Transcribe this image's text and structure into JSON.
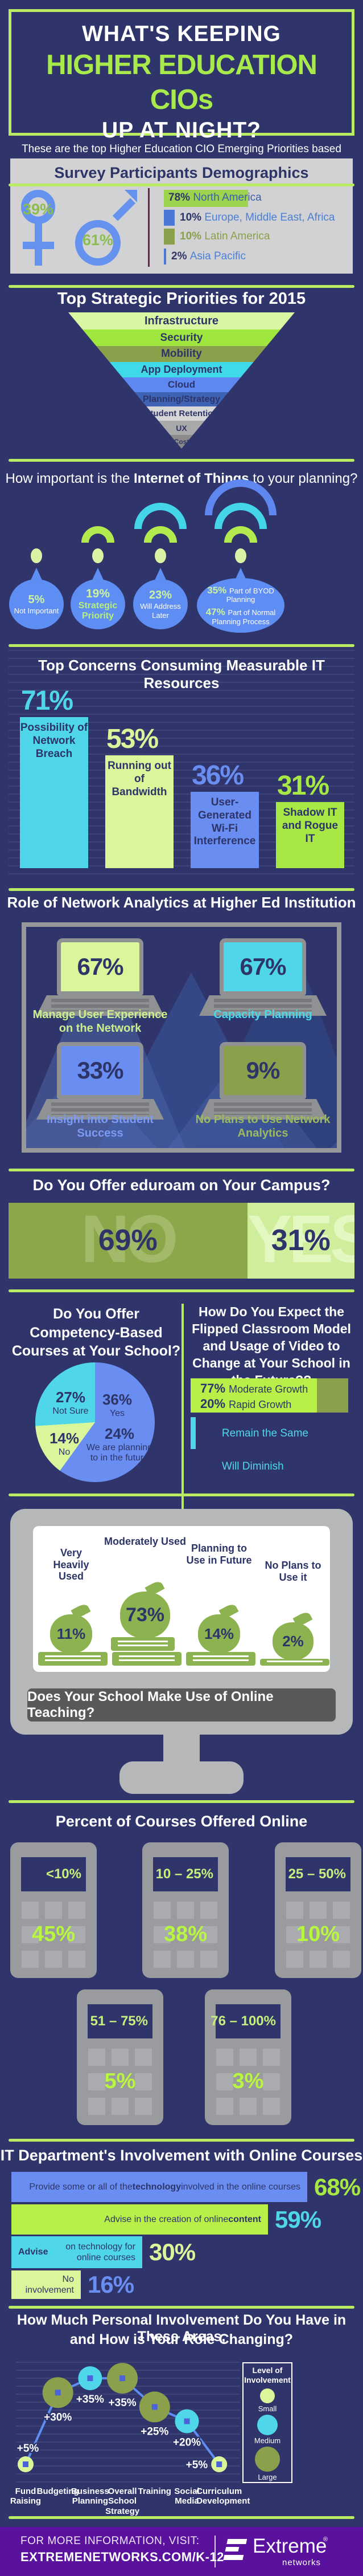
{
  "accent_colors": {
    "background": "#2f356b",
    "divider_green": "#b9ec63",
    "headline_green": "#a8ea4b",
    "navy": "#2d3468",
    "cyan": "#4fd7e9",
    "light_green": "#d9f69b",
    "bright_green": "#a7e844",
    "blue": "#6a8df1",
    "olive": "#8ba04a",
    "footer_purple": "#5a119e"
  },
  "header": {
    "line1": "WHAT'S KEEPING",
    "line2": "HIGHER EDUCATION CIOs",
    "line3": "UP AT NIGHT?",
    "subtitle": "These are the top Higher Education CIO Emerging Priorities based on a worldwide survey of higher education CIOs and directors of technology."
  },
  "demographics": {
    "title": "Survey Participants Demographics",
    "female_pct": "39%",
    "male_pct": "61%"
  },
  "iot": {
    "title_pre": "How important is the ",
    "title_bold": "Internet of Things",
    "title_post": " to your planning?",
    "items": [
      {
        "pct": "5%",
        "label": "Not Important",
        "arcs": 0
      },
      {
        "pct": "19%",
        "label": "Strategic Priority",
        "arcs": 1,
        "emph": true
      },
      {
        "pct": "23%",
        "label": "Will Address Later",
        "arcs": 2
      },
      {
        "pct": "35%",
        "label": "Part of BYOD Planning",
        "pct2": "47%",
        "label2": "Part of Normal Planning Process",
        "arcs": 3,
        "wide": true
      }
    ]
  },
  "it_involvement_bars": [
    {
      "value": 68,
      "pct": "68%",
      "color": "#6a8df1",
      "pct_color": "#a7e844",
      "text_pre": "Provide some or all of the ",
      "text_bold": "technology",
      "text_post": " involved in the online courses"
    },
    {
      "value": 59,
      "pct": "59%",
      "color": "#b9ef49",
      "pct_color": "#4fd7e9",
      "text_pre": "Advise in the creation of online ",
      "text_bold": "content",
      "text_post": ""
    },
    {
      "value": 30,
      "pct": "30%",
      "color": "#4fd7e9",
      "pct_color": "#d9f69b",
      "text_pre": "",
      "text_bold": "Advise",
      "text_post": " on technology for online courses"
    },
    {
      "value": 16,
      "pct": "16%",
      "color": "#d9f69b",
      "pct_color": "#6a8df1",
      "text_pre": "No involvement",
      "text_bold": "",
      "text_post": ""
    }
  ],
  "footer": {
    "line1": "FOR MORE INFORMATION, VISIT:",
    "line2": "EXTREMENETWORKS.COM/K-12",
    "brand": "Extreme",
    "brand_reg": "®",
    "brand_sub": "networks"
  },
  "chart_data": [
    {
      "id": "demographics_gender",
      "type": "pie",
      "categories": [
        "Male",
        "Female"
      ],
      "values": [
        61,
        39
      ],
      "colors": [
        "#6592ee",
        "#6592ee"
      ],
      "value_color": "#8bbd4f"
    },
    {
      "id": "demographics_regions",
      "type": "bar",
      "categories": [
        "North America",
        "Europe, Middle East, Africa",
        "Latin America",
        "Asia Pacific"
      ],
      "values": [
        78,
        10,
        10,
        2
      ],
      "colors": [
        "#9ed34d",
        "#4b77d6",
        "#8ba04a",
        "#4b77d6"
      ],
      "pct_colors": [
        "#2d3468",
        "#2d3468",
        "#8ba04a",
        "#2d3468"
      ],
      "label_colors": [
        "#3a5fae",
        "#4a7fd6",
        "#8ba04a",
        "#4a7fd6"
      ]
    },
    {
      "id": "strategic_priorities",
      "type": "funnel",
      "title": "Top Strategic Priorities for 2015",
      "levels": [
        {
          "label": "Infrastructure",
          "color": "#d9f7a3"
        },
        {
          "label": "Security",
          "color": "#9fe73f"
        },
        {
          "label": "Mobility",
          "color": "#8ba04a"
        },
        {
          "label": "App Deployment",
          "color": "#3fd9e9"
        },
        {
          "label": "Cloud",
          "color": "#5d87f1"
        },
        {
          "label": "Planning/Strategy",
          "color": "#3e63b5"
        },
        {
          "label": "Student Retention",
          "color": "#d6d6d6"
        },
        {
          "label": "UX",
          "color": "#a9a9a9"
        },
        {
          "label": "Cost",
          "color": "#8b8b8b"
        }
      ]
    },
    {
      "id": "iot_importance",
      "type": "bar",
      "categories": [
        "Not Important",
        "Strategic Priority",
        "Will Address Later",
        "Part of BYOD Planning",
        "Part of Normal Planning Process"
      ],
      "values": [
        5,
        19,
        23,
        35,
        47
      ]
    },
    {
      "id": "it_concerns",
      "type": "bar",
      "title": "Top Concerns Consuming Measurable IT Resources",
      "categories": [
        "Possibility of Network Breach",
        "Running out of Bandwidth",
        "User-Generated Wi-Fi Interference",
        "Shadow IT and Rogue IT"
      ],
      "values": [
        71,
        53,
        36,
        31
      ],
      "colors": [
        "#4fd7e9",
        "#d9f69b",
        "#6a8df1",
        "#a7e844"
      ],
      "value_colors": [
        "#4fd7e9",
        "#d9f69b",
        "#6a8df1",
        "#a7e844"
      ],
      "ylim": [
        0,
        100
      ]
    },
    {
      "id": "network_analytics",
      "type": "bar",
      "title": "Role of Network Analytics at Higher Ed Institution",
      "categories": [
        "Manage User Experience on the Network",
        "Capacity Planning",
        "Insight into Student Success",
        "No Plans to Use Network Analytics"
      ],
      "values": [
        67,
        67,
        33,
        9
      ],
      "colors": [
        "#d9f69b",
        "#4fd7e9",
        "#6a8df1",
        "#8ba04a"
      ],
      "label_colors": [
        "#c9ef8f",
        "#4fd7e9",
        "#7d9bf3",
        "#9dbb5e"
      ]
    },
    {
      "id": "eduroam",
      "type": "bar",
      "title": "Do You Offer eduroam on Your Campus?",
      "categories": [
        "NO",
        "YES"
      ],
      "values": [
        69,
        31
      ],
      "colors": [
        "#8ca74a",
        "#cfee9b"
      ],
      "word_colors": [
        "#a3ba6b",
        "#e3f7c0"
      ]
    },
    {
      "id": "competency_courses",
      "type": "pie",
      "title": "Do You Offer Competency-Based Courses at Your School?",
      "slices": [
        {
          "label": "Yes",
          "value": 36,
          "color": "#6a8df1"
        },
        {
          "label": "We are planning to in the future",
          "value": 24,
          "color": "#6a8df1"
        },
        {
          "label": "No",
          "value": 14,
          "color": "#d9f69b"
        },
        {
          "label": "Not Sure",
          "value": 27,
          "color": "#4fd7e9"
        }
      ]
    },
    {
      "id": "flipped_growth",
      "type": "bar",
      "title": "How Do You Expect the Flipped Classroom Model and Usage of Video to Change at Your School in the Future??",
      "categories": [
        "Moderate Growth",
        "Rapid Growth",
        "Remain the Same",
        "Will Diminish"
      ],
      "values": [
        77,
        20,
        3,
        0
      ]
    },
    {
      "id": "online_teaching_usage",
      "type": "bar",
      "title": "Does Your School Make Use of Online Teaching?",
      "categories": [
        "Very Heavily Used",
        "Moderately Used",
        "Planning to Use in Future",
        "No Plans to Use it"
      ],
      "values": [
        11,
        73,
        14,
        2
      ],
      "books": [
        1,
        2,
        1,
        1
      ],
      "book_heights": [
        24,
        24,
        24,
        12
      ]
    },
    {
      "id": "courses_online",
      "type": "table",
      "title": "Percent of Courses Offered Online",
      "categories": [
        "<10%",
        "10 – 25%",
        "25 – 50%",
        "51 – 75%",
        "76 – 100%"
      ],
      "values": [
        45,
        38,
        10,
        5,
        3
      ]
    },
    {
      "id": "it_involvement",
      "type": "bar",
      "title": "IT Department's Involvement with Online Courses",
      "categories": [
        "Provide some or all of the technology involved in the online courses",
        "Advise in the creation of online content",
        "Advise on technology for online courses",
        "No involvement"
      ],
      "values": [
        68,
        59,
        30,
        16
      ]
    },
    {
      "id": "personal_involvement",
      "type": "line",
      "title_line1": "How Much Personal Involvement Do You Have in These Areas,",
      "title_line2": "and How is Your Role Changing?",
      "categories": [
        "Fund Raising",
        "Budgeting",
        "Business Planning",
        "Overall School Strategy",
        "Training",
        "Social Media",
        "Curriculum Development"
      ],
      "values": [
        5,
        30,
        35,
        35,
        25,
        20,
        5
      ],
      "point_labels": [
        "+5%",
        "+30%",
        "+35%",
        "+35%",
        "+25%",
        "+20%",
        "+5%"
      ],
      "sizes": [
        "small",
        "large",
        "medium",
        "large",
        "large",
        "medium",
        "small"
      ],
      "label_pos": [
        "above",
        "below",
        "below",
        "below",
        "below",
        "below",
        "left"
      ],
      "legend": {
        "title": "Level of Involvement",
        "items": [
          {
            "label": "Small",
            "color": "#d9f69b"
          },
          {
            "label": "Medium",
            "color": "#4fd7e9"
          },
          {
            "label": "Large",
            "color": "#8ba04a"
          }
        ]
      }
    }
  ]
}
